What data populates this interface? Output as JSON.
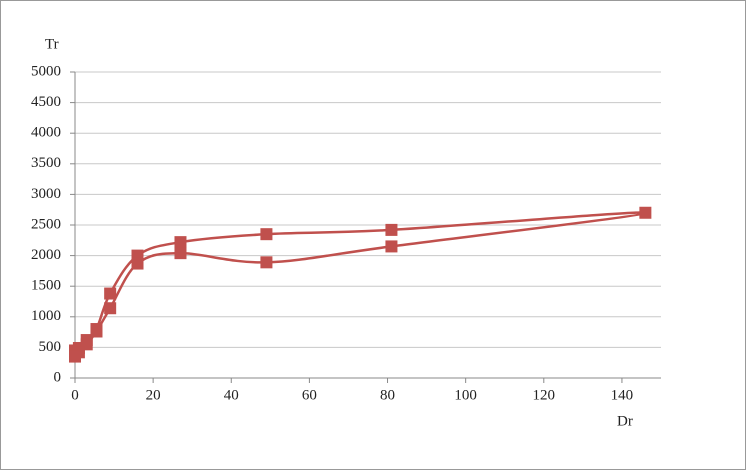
{
  "chart_data": {
    "type": "line",
    "smooth": true,
    "markers": "square",
    "color": "#c0504d",
    "y_label": "Tr",
    "x_label": "Dr",
    "x": [
      0,
      1,
      3,
      5.5,
      9,
      16,
      27,
      49,
      81,
      146,
      81,
      49,
      27,
      16,
      9,
      5.5,
      3,
      1,
      0
    ],
    "values": [
      450,
      490,
      620,
      800,
      1380,
      2000,
      2220,
      2350,
      2420,
      2700,
      2150,
      1890,
      2040,
      1870,
      1140,
      760,
      550,
      420,
      350
    ],
    "xlim": [
      0,
      150
    ],
    "xticks": [
      0,
      20,
      40,
      60,
      80,
      100,
      120,
      140
    ],
    "ylim": [
      0,
      5000
    ],
    "yticks": [
      0,
      500,
      1000,
      1500,
      2000,
      2500,
      3000,
      3500,
      4000,
      4500,
      5000
    ],
    "grid": true
  }
}
